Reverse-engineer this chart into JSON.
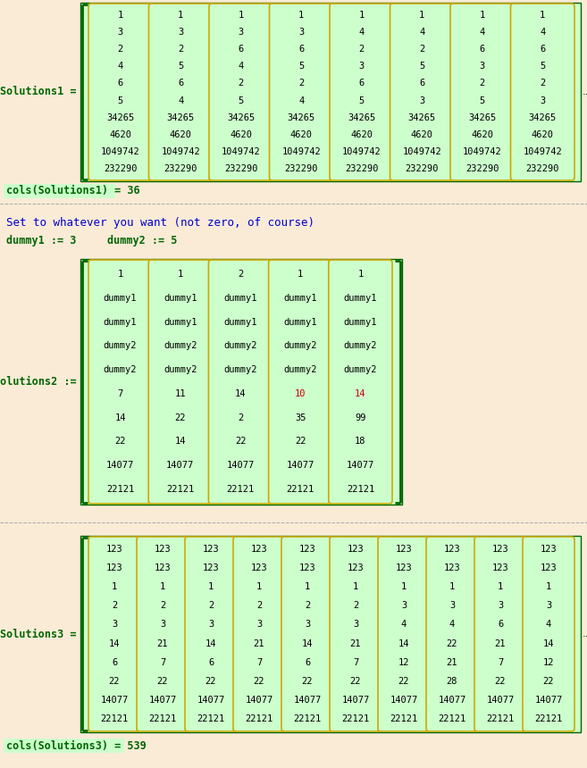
{
  "bg_outer": "#faebd7",
  "bg_green": "#ccffcc",
  "border_outer": "#006600",
  "border_col": "#ccaa00",
  "text_dark": "#000000",
  "text_green_label": "#006600",
  "text_blue": "#0000cc",
  "text_red": "#cc0000",
  "s1_label": "Solutions1 =",
  "s1_cols": [
    [
      1,
      3,
      2,
      4,
      6,
      5,
      34265,
      4620,
      1049742,
      232290
    ],
    [
      1,
      3,
      2,
      5,
      6,
      4,
      34265,
      4620,
      1049742,
      232290
    ],
    [
      1,
      3,
      6,
      4,
      2,
      5,
      34265,
      4620,
      1049742,
      232290
    ],
    [
      1,
      3,
      6,
      5,
      2,
      4,
      34265,
      4620,
      1049742,
      232290
    ],
    [
      1,
      4,
      2,
      3,
      6,
      5,
      34265,
      4620,
      1049742,
      232290
    ],
    [
      1,
      4,
      2,
      5,
      6,
      3,
      34265,
      4620,
      1049742,
      232290
    ],
    [
      1,
      4,
      6,
      3,
      2,
      5,
      34265,
      4620,
      1049742,
      232290
    ],
    [
      1,
      4,
      6,
      5,
      2,
      3,
      34265,
      4620,
      1049742,
      232290
    ]
  ],
  "s1_count": "cols(Solutions1) = 36",
  "s2_intro": "Set to whatever you want (not zero, of course)",
  "s2_var1": "dummy1 := 3",
  "s2_var2": "dummy2 := 5",
  "s2_label": "solutions2 :=",
  "s2_cols": [
    [
      1,
      "dummy1",
      "dummy1",
      "dummy2",
      "dummy2",
      7,
      14,
      22,
      14077,
      22121
    ],
    [
      1,
      "dummy1",
      "dummy1",
      "dummy2",
      "dummy2",
      11,
      22,
      14,
      14077,
      22121
    ],
    [
      2,
      "dummy1",
      "dummy1",
      "dummy2",
      "dummy2",
      14,
      2,
      22,
      14077,
      22121
    ],
    [
      1,
      "dummy1",
      "dummy1",
      "dummy2",
      "dummy2",
      10,
      35,
      22,
      14077,
      22121
    ],
    [
      1,
      "dummy1",
      "dummy1",
      "dummy2",
      "dummy2",
      14,
      99,
      18,
      14077,
      22121
    ]
  ],
  "s3_label": "Solutions3 =",
  "s3_cols": [
    [
      123,
      123,
      1,
      2,
      3,
      14,
      6,
      22,
      14077,
      22121
    ],
    [
      123,
      123,
      1,
      2,
      3,
      21,
      7,
      22,
      14077,
      22121
    ],
    [
      123,
      123,
      1,
      2,
      3,
      14,
      6,
      22,
      14077,
      22121
    ],
    [
      123,
      123,
      1,
      2,
      3,
      21,
      7,
      22,
      14077,
      22121
    ],
    [
      123,
      123,
      1,
      2,
      3,
      14,
      6,
      22,
      14077,
      22121
    ],
    [
      123,
      123,
      1,
      2,
      3,
      21,
      7,
      22,
      14077,
      22121
    ],
    [
      123,
      123,
      1,
      3,
      4,
      14,
      12,
      22,
      14077,
      22121
    ],
    [
      123,
      123,
      1,
      3,
      4,
      22,
      21,
      28,
      14077,
      22121
    ],
    [
      123,
      123,
      1,
      3,
      6,
      21,
      7,
      22,
      14077,
      22121
    ],
    [
      123,
      123,
      1,
      3,
      4,
      14,
      12,
      22,
      14077,
      22121
    ]
  ],
  "s3_count": "cols(Solutions3) = 539"
}
